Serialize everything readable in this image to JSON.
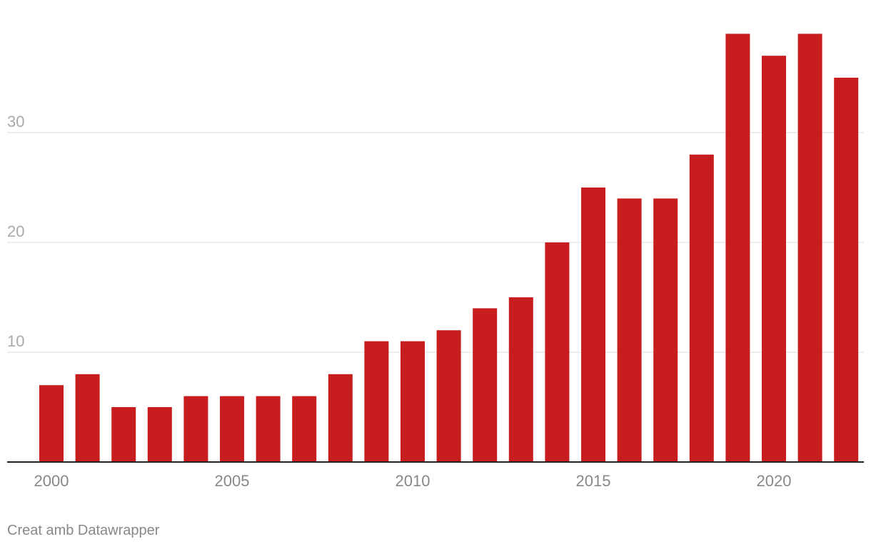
{
  "chart_data": {
    "type": "bar",
    "categories": [
      "2000",
      "2001",
      "2002",
      "2003",
      "2004",
      "2005",
      "2006",
      "2007",
      "2008",
      "2009",
      "2010",
      "2011",
      "2012",
      "2013",
      "2014",
      "2015",
      "2016",
      "2017",
      "2018",
      "2019",
      "2020",
      "2021",
      "2022"
    ],
    "values": [
      7,
      8,
      5,
      5,
      6,
      6,
      6,
      6,
      8,
      11,
      11,
      12,
      14,
      15,
      20,
      25,
      24,
      24,
      28,
      39,
      37,
      39,
      35
    ],
    "ylim": [
      0,
      40
    ],
    "yticks": [
      10,
      20,
      30
    ],
    "xtick_labels": [
      "2000",
      "2005",
      "2010",
      "2015",
      "2020"
    ],
    "grid": true,
    "bar_color": "#c81d1e",
    "title": "",
    "xlabel": "",
    "ylabel": ""
  },
  "footer": {
    "credit": "Creat amb Datawrapper"
  }
}
